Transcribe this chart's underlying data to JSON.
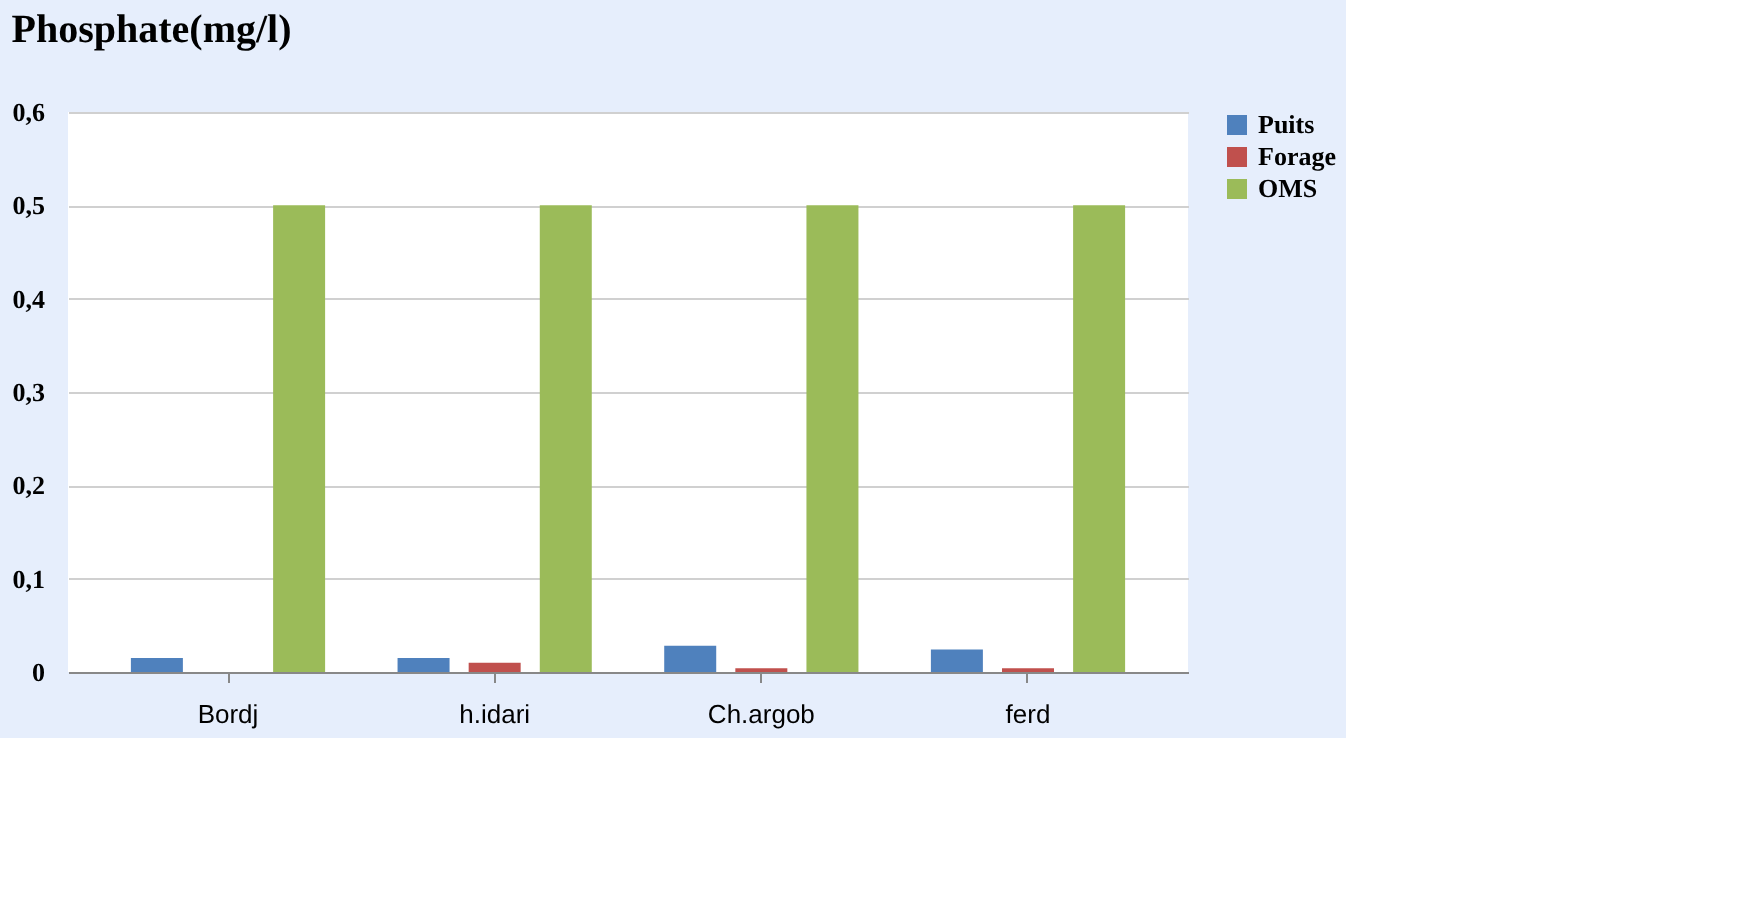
{
  "chart_data": {
    "type": "bar",
    "title": "Phosphate(mg/l)",
    "categories": [
      "Bordj",
      "h.idari",
      "Ch.argob",
      "ferd"
    ],
    "series": [
      {
        "name": "Puits",
        "color": "#4f81bd",
        "values": [
          0.015,
          0.015,
          0.028,
          0.024
        ]
      },
      {
        "name": "Forage",
        "color": "#c0504d",
        "values": [
          0,
          0.01,
          0.004,
          0.004
        ]
      },
      {
        "name": "OMS",
        "color": "#9bbb59",
        "values": [
          0.5,
          0.5,
          0.5,
          0.5
        ]
      }
    ],
    "ylim": [
      0,
      0.6
    ],
    "yticks": [
      {
        "value": 0,
        "label": "0"
      },
      {
        "value": 0.1,
        "label": "0,1"
      },
      {
        "value": 0.2,
        "label": "0,2"
      },
      {
        "value": 0.3,
        "label": "0,3"
      },
      {
        "value": 0.4,
        "label": "0,4"
      },
      {
        "value": 0.5,
        "label": "0,5"
      },
      {
        "value": 0.6,
        "label": "0,6"
      }
    ],
    "grid": "y",
    "legend": "right"
  }
}
